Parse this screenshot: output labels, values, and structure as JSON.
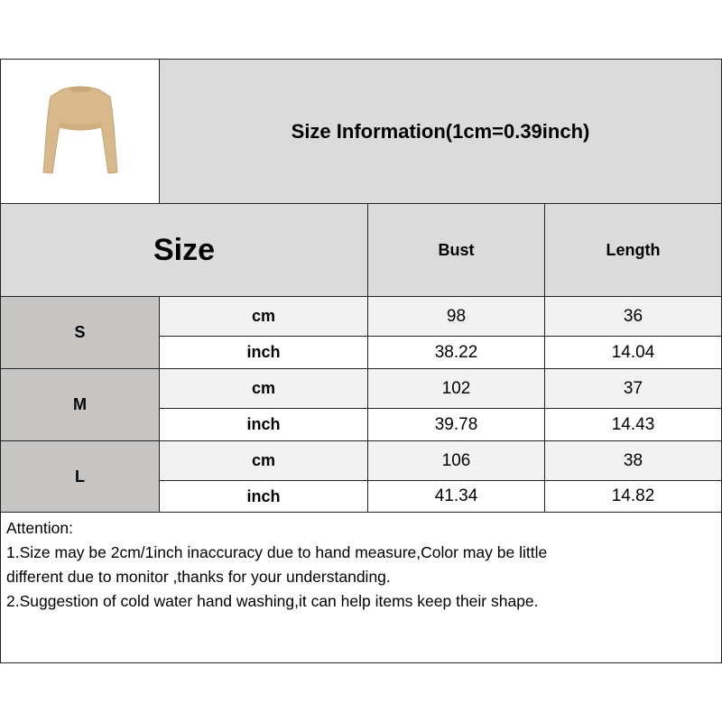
{
  "title": "Size Information(1cm=0.39inch)",
  "product_image": {
    "icon": "cropped-sweater-image",
    "color": "#d8b98c"
  },
  "header": {
    "size": "Size",
    "columns": [
      "Bust",
      "Length"
    ]
  },
  "rows": [
    {
      "size": "S",
      "cm": {
        "unit": "cm",
        "bust": "98",
        "length": "36"
      },
      "inch": {
        "unit": "inch",
        "bust": "38.22",
        "length": "14.04"
      }
    },
    {
      "size": "M",
      "cm": {
        "unit": "cm",
        "bust": "102",
        "length": "37"
      },
      "inch": {
        "unit": "inch",
        "bust": "39.78",
        "length": "14.43"
      }
    },
    {
      "size": "L",
      "cm": {
        "unit": "cm",
        "bust": "106",
        "length": "38"
      },
      "inch": {
        "unit": "inch",
        "bust": "41.34",
        "length": "14.82"
      }
    }
  ],
  "attention": {
    "heading": "Attention:",
    "lines": [
      "1.Size may be 2cm/1inch inaccuracy due to hand measure,Color may be little",
      "different due to monitor ,thanks for your understanding.",
      "2.Suggestion of cold water hand washing,it can help items keep their shape."
    ]
  }
}
